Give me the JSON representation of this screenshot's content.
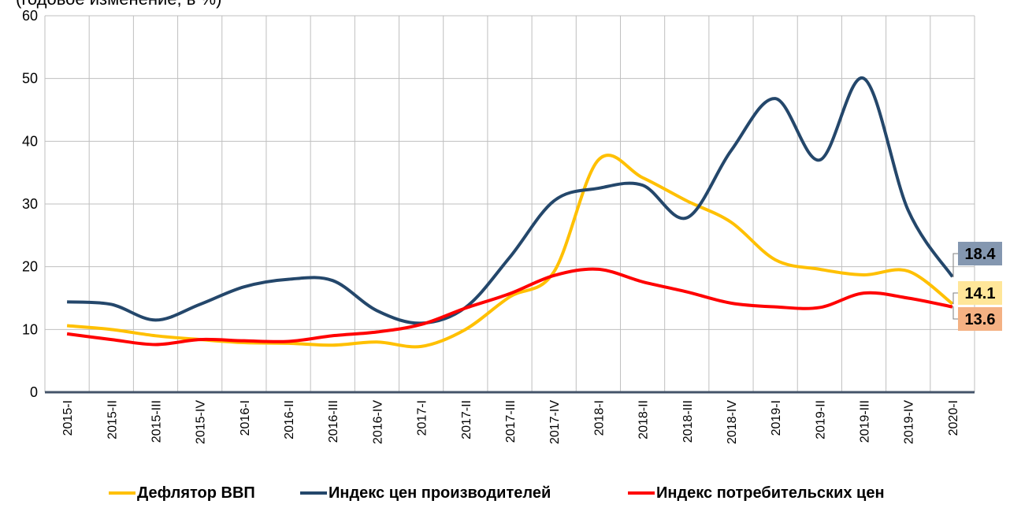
{
  "chart_data": {
    "type": "line",
    "subtitle": "(годовое изменение, в %)",
    "categories": [
      "2015-I",
      "2015-II",
      "2015-III",
      "2015-IV",
      "2016-I",
      "2016-II",
      "2016-III",
      "2016-IV",
      "2017-I",
      "2017-II",
      "2017-III",
      "2017-IV",
      "2018-I",
      "2018-II",
      "2018-III",
      "2018-IV",
      "2019-I",
      "2019-II",
      "2019-III",
      "2019-IV",
      "2020-I"
    ],
    "series": [
      {
        "name": "Дефлятор ВВП",
        "color": "#ffc000",
        "label_color": "#ffe699",
        "values": [
          10.6,
          10.0,
          9.0,
          8.4,
          7.9,
          7.8,
          7.5,
          8.0,
          7.3,
          10.0,
          15.2,
          19.2,
          37.0,
          34.2,
          30.5,
          27.1,
          21.1,
          19.6,
          18.7,
          19.3,
          14.1
        ]
      },
      {
        "name": "Индекс цен производителей",
        "color": "#24476b",
        "label_color": "#8497b0",
        "values": [
          14.4,
          14.0,
          11.5,
          14.0,
          16.8,
          18.0,
          17.8,
          13.0,
          11.0,
          13.5,
          21.5,
          30.5,
          32.5,
          33.0,
          27.8,
          38.5,
          46.8,
          37.0,
          50.0,
          29.0,
          18.4
        ]
      },
      {
        "name": "Индекс потребительских цен",
        "color": "#ff0000",
        "label_color": "#f4b183",
        "values": [
          9.3,
          8.4,
          7.6,
          8.4,
          8.2,
          8.1,
          9.0,
          9.6,
          10.8,
          13.4,
          15.7,
          18.6,
          19.6,
          17.6,
          16.0,
          14.2,
          13.6,
          13.5,
          15.8,
          15.0,
          13.6
        ]
      }
    ],
    "ylim": [
      0,
      60
    ],
    "yticks": [
      0,
      10,
      20,
      30,
      40,
      50,
      60
    ],
    "grid": true,
    "legend": "bottom"
  }
}
